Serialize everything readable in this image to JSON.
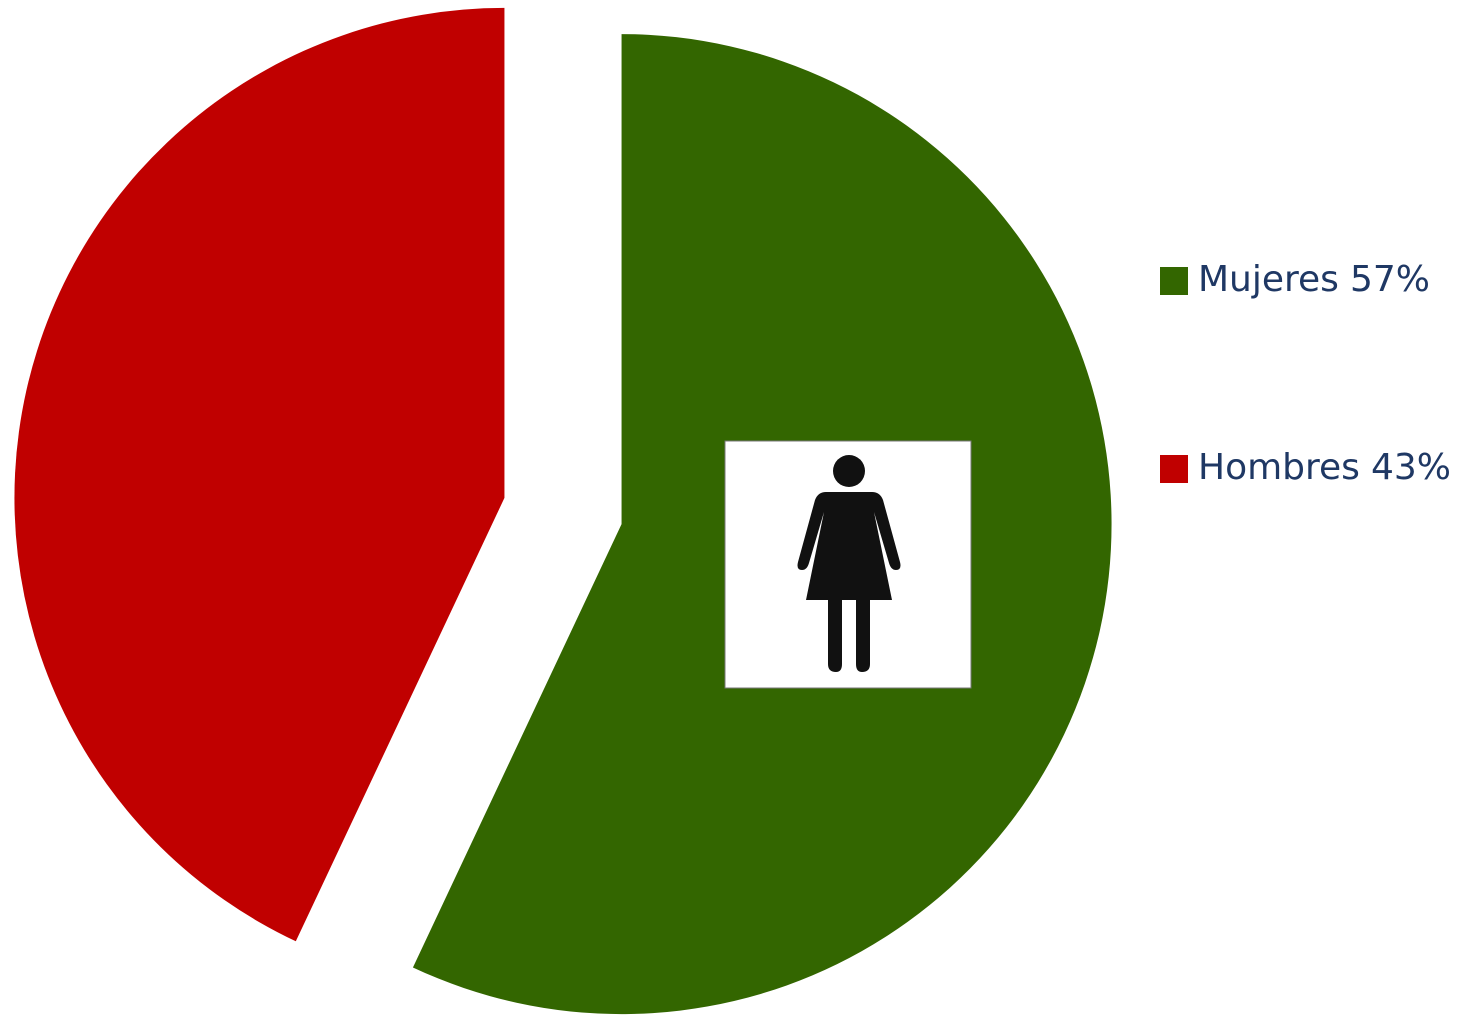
{
  "chart_data": {
    "type": "pie",
    "categories": [
      "Mujeres",
      "Hombres"
    ],
    "values": [
      57,
      43
    ],
    "value_labels": [
      "57%",
      "43%"
    ],
    "colors": [
      "#336600",
      "#c00000"
    ],
    "legend": "right"
  }
}
